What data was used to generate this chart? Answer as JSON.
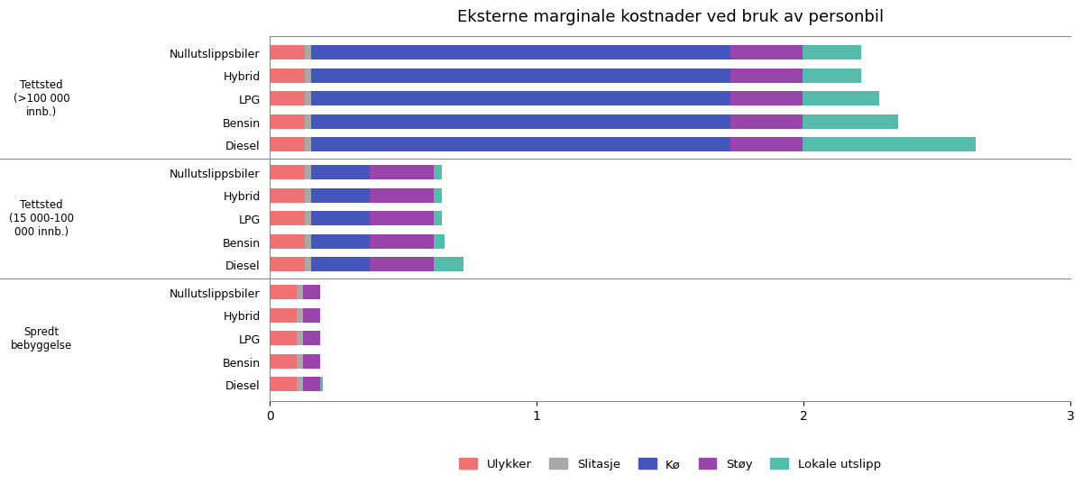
{
  "title": "Eksterne marginale kostnader ved bruk av personbil",
  "components": [
    "Ulykker",
    "Slitasje",
    "Kø",
    "Støy",
    "Lokale utslipp"
  ],
  "colors": [
    "#F07272",
    "#A8A8A8",
    "#4455BB",
    "#9944AA",
    "#55BBAA"
  ],
  "vehicle_types_order": [
    "Nullutslippsbiler",
    "Hybrid",
    "LPG",
    "Bensin",
    "Diesel"
  ],
  "groups": [
    "Tettsted\n(>100 000\ninnb.)",
    "Tettsted\n(15 000-100\n000 innb.)",
    "Spredt\nbebyggelse"
  ],
  "data": [
    {
      "group": "Tettsted (>100 000 innb.)",
      "rows": [
        {
          "vtype": "Nullutslippsbiler",
          "vals": [
            0.13,
            0.025,
            1.57,
            0.27,
            0.22
          ]
        },
        {
          "vtype": "Hybrid",
          "vals": [
            0.13,
            0.025,
            1.57,
            0.27,
            0.22
          ]
        },
        {
          "vtype": "LPG",
          "vals": [
            0.13,
            0.025,
            1.57,
            0.27,
            0.29
          ]
        },
        {
          "vtype": "Bensin",
          "vals": [
            0.13,
            0.025,
            1.57,
            0.27,
            0.36
          ]
        },
        {
          "vtype": "Diesel",
          "vals": [
            0.13,
            0.025,
            1.57,
            0.27,
            0.65
          ]
        }
      ]
    },
    {
      "group": "Tettsted (15 000-100 000 innb.)",
      "rows": [
        {
          "vtype": "Nullutslippsbiler",
          "vals": [
            0.13,
            0.025,
            0.22,
            0.24,
            0.03
          ]
        },
        {
          "vtype": "Hybrid",
          "vals": [
            0.13,
            0.025,
            0.22,
            0.24,
            0.03
          ]
        },
        {
          "vtype": "LPG",
          "vals": [
            0.13,
            0.025,
            0.22,
            0.24,
            0.03
          ]
        },
        {
          "vtype": "Bensin",
          "vals": [
            0.13,
            0.025,
            0.22,
            0.24,
            0.04
          ]
        },
        {
          "vtype": "Diesel",
          "vals": [
            0.13,
            0.025,
            0.22,
            0.24,
            0.11
          ]
        }
      ]
    },
    {
      "group": "Spredt bebyggelse",
      "rows": [
        {
          "vtype": "Nullutslippsbiler",
          "vals": [
            0.1,
            0.025,
            0.0,
            0.065,
            0.0
          ]
        },
        {
          "vtype": "Hybrid",
          "vals": [
            0.1,
            0.025,
            0.0,
            0.065,
            0.0
          ]
        },
        {
          "vtype": "LPG",
          "vals": [
            0.1,
            0.025,
            0.0,
            0.065,
            0.0
          ]
        },
        {
          "vtype": "Bensin",
          "vals": [
            0.1,
            0.025,
            0.0,
            0.065,
            0.0
          ]
        },
        {
          "vtype": "Diesel",
          "vals": [
            0.1,
            0.025,
            0.0,
            0.065,
            0.01
          ]
        }
      ]
    }
  ],
  "xlim": [
    0,
    3.0
  ],
  "xticks": [
    0,
    1,
    2,
    3
  ],
  "bar_height": 0.62,
  "background_color": "#FFFFFF",
  "group_label_texts": [
    "Tettsted\n(>100 000\ninnb.)",
    "Tettsted\n(15 000-100\n000 innb.)",
    "Spredt\nbebyggelse"
  ]
}
